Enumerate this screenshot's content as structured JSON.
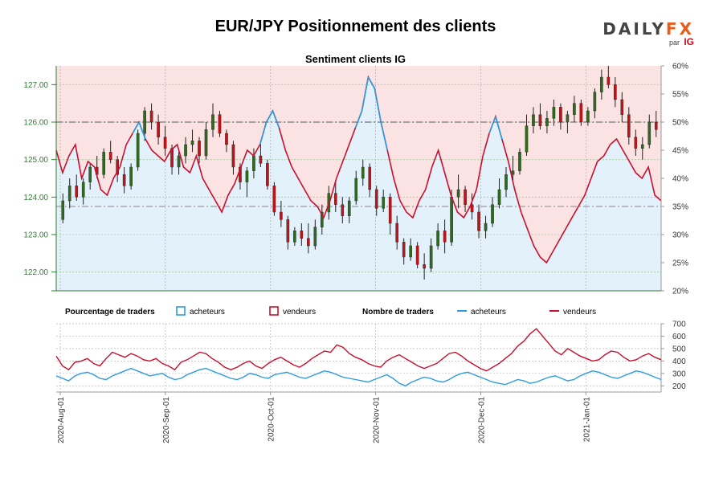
{
  "header": {
    "title": "EUR/JPY Positionnement des clients",
    "brand": {
      "word_main": "DAILY",
      "word_accent": "FX",
      "par": "par",
      "ig": "IG"
    }
  },
  "colors": {
    "upper_zone": "#fbe3e3",
    "lower_zone": "#e3f1fb",
    "candle_up": "#2e6b1f",
    "candle_down": "#c0141b",
    "buyers": "#2c9be0",
    "sellers": "#c8102e",
    "axis_green": "#2e7d32",
    "grid": "#b5b5b5"
  },
  "chart_data": [
    {
      "type": "candlestick",
      "title": "Sentiment clients IG",
      "price_axis": {
        "ylim": [
          121.5,
          127.5
        ],
        "ticks": [
          "122.00",
          "123.00",
          "124.00",
          "125.00",
          "126.00",
          "127.00"
        ]
      },
      "percent_axis": {
        "ylim": [
          20,
          60
        ],
        "ticks": [
          "20%",
          "25%",
          "30%",
          "35%",
          "40%",
          "45%",
          "50%",
          "55%",
          "60%"
        ]
      },
      "reference_lines": {
        "price_level": 126.0,
        "percent_level": 35
      },
      "candles_ohlc": [
        [
          123.4,
          124.1,
          123.3,
          123.9
        ],
        [
          123.9,
          124.5,
          123.7,
          124.3
        ],
        [
          124.3,
          124.6,
          123.9,
          124.0
        ],
        [
          124.0,
          124.5,
          123.8,
          124.4
        ],
        [
          124.4,
          124.9,
          124.2,
          124.8
        ],
        [
          124.8,
          125.1,
          124.5,
          124.6
        ],
        [
          124.6,
          125.3,
          124.5,
          125.2
        ],
        [
          125.2,
          125.5,
          124.9,
          125.0
        ],
        [
          125.0,
          125.1,
          124.4,
          124.6
        ],
        [
          124.6,
          124.8,
          124.1,
          124.3
        ],
        [
          124.3,
          124.9,
          124.2,
          124.8
        ],
        [
          124.8,
          125.8,
          124.7,
          125.7
        ],
        [
          125.7,
          126.4,
          125.5,
          126.3
        ],
        [
          126.3,
          126.5,
          125.8,
          126.0
        ],
        [
          126.0,
          126.2,
          125.4,
          125.6
        ],
        [
          125.6,
          125.9,
          125.1,
          125.3
        ],
        [
          125.3,
          125.4,
          124.6,
          124.8
        ],
        [
          124.8,
          125.2,
          124.6,
          125.1
        ],
        [
          125.1,
          125.6,
          124.9,
          125.4
        ],
        [
          125.4,
          125.8,
          125.2,
          125.5
        ],
        [
          125.5,
          125.6,
          124.9,
          125.1
        ],
        [
          125.1,
          126.0,
          125.0,
          125.8
        ],
        [
          125.8,
          126.5,
          125.6,
          126.2
        ],
        [
          126.2,
          126.3,
          125.6,
          125.7
        ],
        [
          125.7,
          125.8,
          125.2,
          125.4
        ],
        [
          125.4,
          125.5,
          124.6,
          124.8
        ],
        [
          124.8,
          124.9,
          124.2,
          124.4
        ],
        [
          124.4,
          124.8,
          124.0,
          124.7
        ],
        [
          124.7,
          125.3,
          124.5,
          125.1
        ],
        [
          125.1,
          125.5,
          124.8,
          124.9
        ],
        [
          124.9,
          125.0,
          124.2,
          124.3
        ],
        [
          124.3,
          124.4,
          123.5,
          123.6
        ],
        [
          123.6,
          123.9,
          123.2,
          123.4
        ],
        [
          123.4,
          123.5,
          122.6,
          122.8
        ],
        [
          122.8,
          123.2,
          122.7,
          123.1
        ],
        [
          123.1,
          123.3,
          122.7,
          122.9
        ],
        [
          122.9,
          123.3,
          122.5,
          122.7
        ],
        [
          122.7,
          123.4,
          122.6,
          123.2
        ],
        [
          123.2,
          123.8,
          123.0,
          123.6
        ],
        [
          123.6,
          124.3,
          123.4,
          124.1
        ],
        [
          124.1,
          124.4,
          123.6,
          123.8
        ],
        [
          123.8,
          124.0,
          123.3,
          123.5
        ],
        [
          123.5,
          124.0,
          123.3,
          123.9
        ],
        [
          123.9,
          124.7,
          123.8,
          124.5
        ],
        [
          124.5,
          125.0,
          124.3,
          124.8
        ],
        [
          124.8,
          124.9,
          124.0,
          124.2
        ],
        [
          124.2,
          124.3,
          123.5,
          123.7
        ],
        [
          123.7,
          124.2,
          123.6,
          124.0
        ],
        [
          124.0,
          124.1,
          123.0,
          123.3
        ],
        [
          123.3,
          123.5,
          122.6,
          122.8
        ],
        [
          122.8,
          122.9,
          122.2,
          122.4
        ],
        [
          122.4,
          122.9,
          122.3,
          122.7
        ],
        [
          122.7,
          122.8,
          122.1,
          122.2
        ],
        [
          122.2,
          122.5,
          121.8,
          122.1
        ],
        [
          122.1,
          122.9,
          122.0,
          122.7
        ],
        [
          122.7,
          123.3,
          122.6,
          123.1
        ],
        [
          123.1,
          123.4,
          122.5,
          122.8
        ],
        [
          122.8,
          124.2,
          122.7,
          124.0
        ],
        [
          124.0,
          124.6,
          123.7,
          124.2
        ],
        [
          124.2,
          124.3,
          123.6,
          123.8
        ],
        [
          123.8,
          124.1,
          123.4,
          123.6
        ],
        [
          123.6,
          123.8,
          122.9,
          123.1
        ],
        [
          123.1,
          123.5,
          122.9,
          123.3
        ],
        [
          123.3,
          124.0,
          123.2,
          123.8
        ],
        [
          123.8,
          124.5,
          123.7,
          124.2
        ],
        [
          124.2,
          124.8,
          124.0,
          124.6
        ],
        [
          124.6,
          125.1,
          124.4,
          124.7
        ],
        [
          124.7,
          125.3,
          124.6,
          125.2
        ],
        [
          125.2,
          126.2,
          125.1,
          125.9
        ],
        [
          125.9,
          126.4,
          125.7,
          126.2
        ],
        [
          126.2,
          126.5,
          125.8,
          125.9
        ],
        [
          125.9,
          126.3,
          125.7,
          126.1
        ],
        [
          126.1,
          126.6,
          125.9,
          126.4
        ],
        [
          126.4,
          126.5,
          125.8,
          126.0
        ],
        [
          126.0,
          126.3,
          125.7,
          126.2
        ],
        [
          126.2,
          126.7,
          126.0,
          126.5
        ],
        [
          126.5,
          126.6,
          125.9,
          126.0
        ],
        [
          126.0,
          126.4,
          125.9,
          126.3
        ],
        [
          126.3,
          126.9,
          126.1,
          126.8
        ],
        [
          126.8,
          127.4,
          126.6,
          127.2
        ],
        [
          127.2,
          127.5,
          126.9,
          127.0
        ],
        [
          127.0,
          127.2,
          126.4,
          126.6
        ],
        [
          126.6,
          126.8,
          126.0,
          126.2
        ],
        [
          126.2,
          126.4,
          125.4,
          125.6
        ],
        [
          125.6,
          125.8,
          125.1,
          125.3
        ],
        [
          125.3,
          125.6,
          125.0,
          125.4
        ],
        [
          125.4,
          126.2,
          125.3,
          126.0
        ],
        [
          126.0,
          126.3,
          125.6,
          125.8
        ]
      ],
      "percent_line": [
        45,
        41,
        44,
        46,
        40,
        43,
        42,
        38,
        37,
        40,
        42,
        46,
        48,
        50,
        47,
        45,
        44,
        43,
        45,
        46,
        42,
        41,
        44,
        40,
        38,
        36,
        34,
        37,
        39,
        42,
        45,
        44,
        46,
        50,
        52,
        49,
        45,
        42,
        40,
        38,
        36,
        35,
        33,
        36,
        40,
        43,
        46,
        49,
        52,
        58,
        56,
        50,
        45,
        40,
        36,
        34,
        33,
        36,
        38,
        42,
        45,
        41,
        37,
        34,
        33,
        35,
        38,
        44,
        48,
        51,
        47,
        43,
        38,
        34,
        31,
        28,
        26,
        25,
        27,
        29,
        31,
        33,
        35,
        37,
        40,
        43,
        44,
        46,
        47,
        45,
        43,
        41,
        40,
        42,
        37,
        36
      ]
    },
    {
      "type": "line",
      "ylim": [
        150,
        700
      ],
      "y_ticks": [
        "200",
        "300",
        "400",
        "500",
        "600",
        "700"
      ],
      "x_ticks": [
        "2020-Aug-01",
        "2020-Sep-01",
        "2020-Oct-01",
        "2020-Nov-01",
        "2020-Dec-01",
        "2021-Jan-01"
      ],
      "legend": {
        "pct_title": "Pourcentage de traders",
        "pct_buyers": "acheteurs",
        "pct_sellers": "vendeurs",
        "count_title": "Nombre de traders",
        "count_buyers": "acheteurs",
        "count_sellers": "vendeurs"
      },
      "series": [
        {
          "name": "vendeurs",
          "values": [
            440,
            360,
            330,
            390,
            400,
            420,
            380,
            360,
            420,
            470,
            450,
            430,
            460,
            440,
            410,
            400,
            420,
            380,
            360,
            330,
            390,
            410,
            440,
            470,
            460,
            420,
            390,
            350,
            330,
            350,
            380,
            400,
            360,
            340,
            380,
            410,
            430,
            400,
            370,
            350,
            380,
            420,
            450,
            480,
            470,
            530,
            510,
            460,
            430,
            410,
            380,
            360,
            350,
            400,
            430,
            450,
            420,
            390,
            360,
            340,
            360,
            380,
            420,
            460,
            470,
            440,
            400,
            370,
            340,
            320,
            350,
            380,
            420,
            460,
            520,
            560,
            620,
            660,
            600,
            540,
            480,
            450,
            500,
            470,
            440,
            420,
            400,
            410,
            450,
            480,
            470,
            430,
            400,
            410,
            440,
            460,
            430,
            410
          ]
        },
        {
          "name": "acheteurs",
          "values": [
            280,
            260,
            240,
            280,
            300,
            310,
            290,
            260,
            250,
            280,
            300,
            320,
            340,
            320,
            300,
            280,
            290,
            300,
            270,
            250,
            260,
            290,
            310,
            330,
            340,
            320,
            300,
            280,
            260,
            250,
            270,
            300,
            290,
            270,
            260,
            290,
            300,
            310,
            290,
            270,
            260,
            280,
            300,
            320,
            310,
            290,
            270,
            260,
            250,
            240,
            230,
            250,
            270,
            290,
            260,
            220,
            200,
            230,
            250,
            270,
            260,
            240,
            230,
            250,
            280,
            300,
            310,
            290,
            270,
            250,
            230,
            220,
            210,
            230,
            250,
            240,
            220,
            230,
            250,
            270,
            280,
            260,
            240,
            250,
            280,
            300,
            320,
            310,
            290,
            270,
            260,
            280,
            300,
            320,
            310,
            290,
            270,
            250
          ]
        }
      ]
    }
  ]
}
